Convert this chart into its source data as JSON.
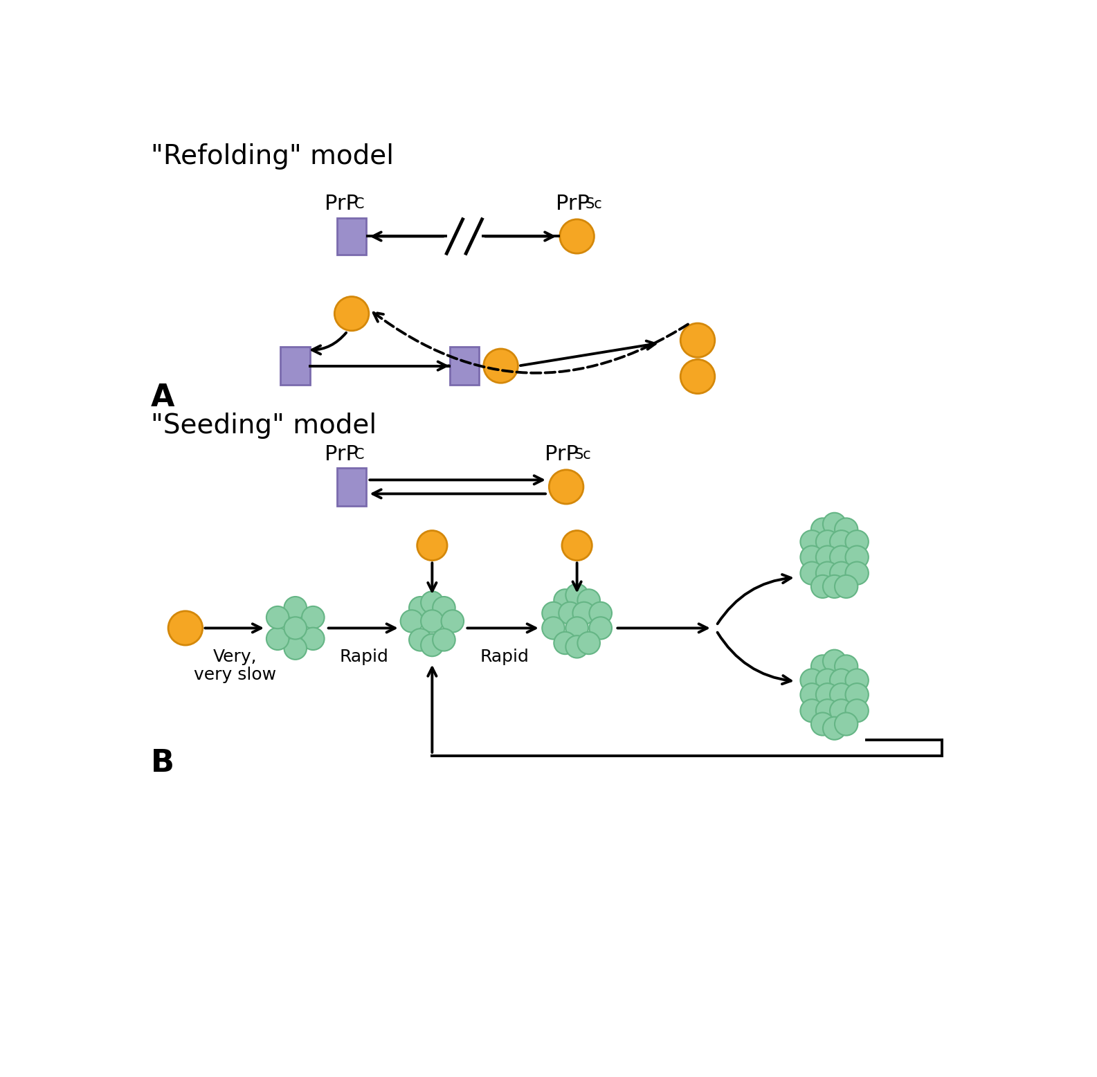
{
  "bg_color": "#ffffff",
  "purple_color": "#9b8fca",
  "purple_edge": "#7a6aad",
  "orange_color": "#f5a623",
  "orange_edge": "#d4880a",
  "green_color": "#8dcfa8",
  "green_edge": "#65b585",
  "black": "#000000",
  "title_A": "\"Refolding\" model",
  "title_B": "\"Seeding\" model",
  "label_A": "A",
  "label_B": "B"
}
